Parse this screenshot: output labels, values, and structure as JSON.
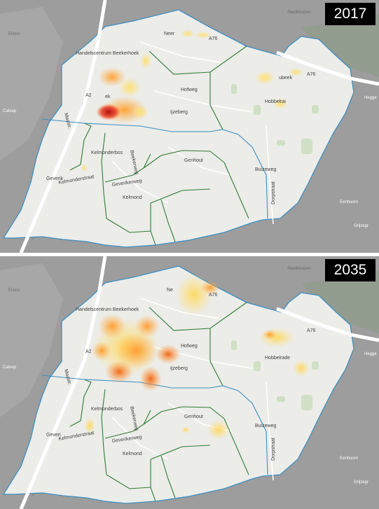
{
  "panels": [
    {
      "year": "2017",
      "labels": {
        "elsloo": "Elsloo",
        "sweikhuizen": "Sweikhuizen",
        "neerbeek": "Neer",
        "hbeek": "Handelscentrum Beekerhoek",
        "beek": "ek",
        "a2": "A2",
        "a76": "A76",
        "a76b": "A76",
        "hofweg": "Hofweg",
        "ijzeberg": "Ijzeberg",
        "spaubeek": "ubeek",
        "hobbelrade": "Hobbelrai",
        "geverik": "Geverik",
        "kelmonderbos": "Kelmonderbos",
        "genhout": "Genhout",
        "kelmond": "Kelmond",
        "buizeweg": "Buizeweg",
        "dorpstraat": "Dorpstraat",
        "bekerweg": "Beekerweg",
        "geverikerweg": "Geverikerweg",
        "catsop": "Catsop",
        "hegge": "Hegge",
        "grijzegr": "Grijzegr",
        "eenhoorn": "Eenhoorn",
        "kelmonderstraat": "Kelmonderstraat",
        "maastrichterweg": "Maastr."
      },
      "heat_level": "low"
    },
    {
      "year": "2035",
      "labels": {
        "elsloo": "Elsloo",
        "sweikhuizen": "Sweikhuizen",
        "neerbeek": "Ne",
        "hbeek": "Handelscentrum Beekerhoek",
        "beek": "",
        "a2": "A2",
        "a76": "A76",
        "a76b": "A76",
        "hofweg": "Hofweg",
        "ijzeberg": "Ijzeberg",
        "spaubeek": "",
        "hobbelrade": "Hobbelrade",
        "geverik": "Geveri",
        "kelmonderbos": "Kelmonderbos",
        "genhout": "Genhout",
        "kelmond": "Kelmond",
        "buizeweg": "Buizeweg",
        "dorpstraat": "Dorpstraat",
        "bekerweg": "Beekerweg",
        "geverikerweg": "Geverikerweg",
        "catsop": "Catsop",
        "hegge": "Hegge",
        "grijzegr": "Grijzegr",
        "eenhoorn": "Eenhoorn",
        "kelmonderstraat": "Kelmonderstraat",
        "maastrichterweg": "Maastr."
      },
      "heat_level": "high"
    }
  ],
  "colors": {
    "outside": "#9d9d9d",
    "inside": "#ececea",
    "boundary": "#3d8fc2",
    "districts": "#2e7d32",
    "heat_low": "#ffe98a",
    "heat_mid": "#ffb347",
    "heat_high": "#e8341c"
  }
}
